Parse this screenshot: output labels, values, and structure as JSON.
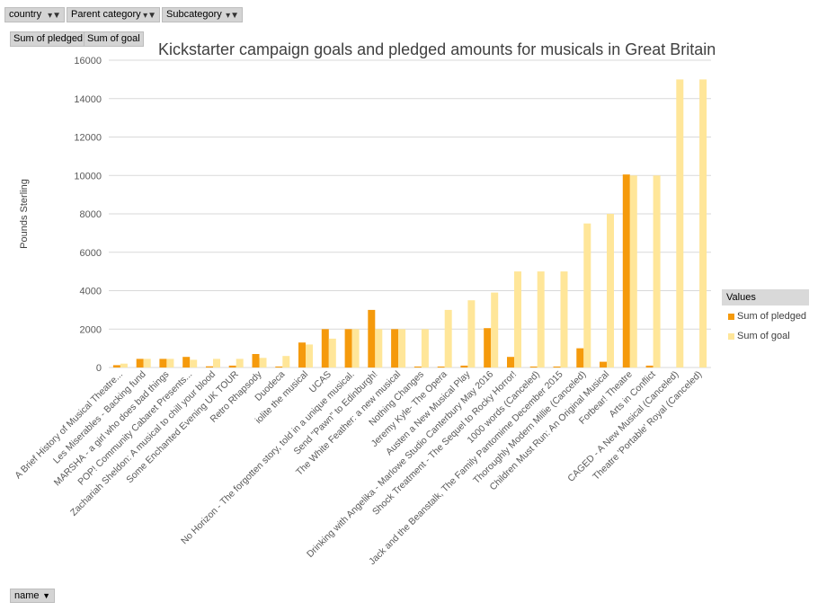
{
  "filters": [
    {
      "label": "country"
    },
    {
      "label": "Parent category"
    },
    {
      "label": "Subcategory"
    }
  ],
  "value_fields": [
    "Sum of pledged",
    "Sum of goal"
  ],
  "axis_field": {
    "label": "name"
  },
  "legend": {
    "header": "Values"
  },
  "colors": {
    "pledged": "#f59a0c",
    "goal": "#ffe699",
    "grid": "#d9d9d9"
  },
  "chart_data": {
    "type": "bar",
    "title": "Kickstarter campaign goals and pledged amounts for musicals in Great Britain",
    "xlabel": "",
    "ylabel": "Pounds Sterling",
    "ylim": [
      0,
      16000
    ],
    "yticks": [
      0,
      2000,
      4000,
      6000,
      8000,
      10000,
      12000,
      14000,
      16000
    ],
    "grid": true,
    "legend_position": "right",
    "categories": [
      "A Brief History of Musical Theatre...",
      "Les Miserables - Backing fund",
      "MARSHA - a girl who does bad things",
      "POP! Community Cabaret Presents...",
      "Zachariah Sheldon: A musical to chill your blood",
      "Some Enchanted Evening UK TOUR",
      "Retro Rhapsody",
      "Duodeca",
      "iolite the musical",
      "UCAS",
      "No Horizon - The forgotten story, told in a unique musical.",
      "Send \"Pawn\" to Edinburgh!",
      "The White Feather: a new musical",
      "Nothing Changes",
      "Jeremy Kyle- The Opera",
      "Austen a New Musical Play",
      "Drinking with Angelika - Marlowe Studio Canterbury May 2016",
      "Shock Treatment - The Sequel to Rocky Horror!",
      "1000 words (Canceled)",
      "Jack and the Beanstalk, The Family Pantomime December 2015",
      "Thoroughly Modern Millie (Canceled)",
      "Children Must Run: An Original Musical",
      "Forbear! Theatre",
      "Arts in Conflict",
      "CAGED - A New Musical (Canceled)",
      "Theatre 'Portable' Royal (Canceled)"
    ],
    "series": [
      {
        "name": "Sum of pledged",
        "values": [
          120,
          450,
          450,
          550,
          60,
          100,
          700,
          50,
          1300,
          2000,
          2000,
          3000,
          2000,
          50,
          50,
          100,
          2050,
          550,
          50,
          50,
          1000,
          300,
          10050,
          100,
          0,
          0
        ]
      },
      {
        "name": "Sum of goal",
        "values": [
          200,
          450,
          450,
          400,
          450,
          450,
          500,
          600,
          1200,
          1500,
          2000,
          2000,
          2000,
          2000,
          3000,
          3500,
          3900,
          5000,
          5000,
          5000,
          7500,
          8000,
          10000,
          10000,
          15000,
          15000
        ]
      }
    ]
  }
}
